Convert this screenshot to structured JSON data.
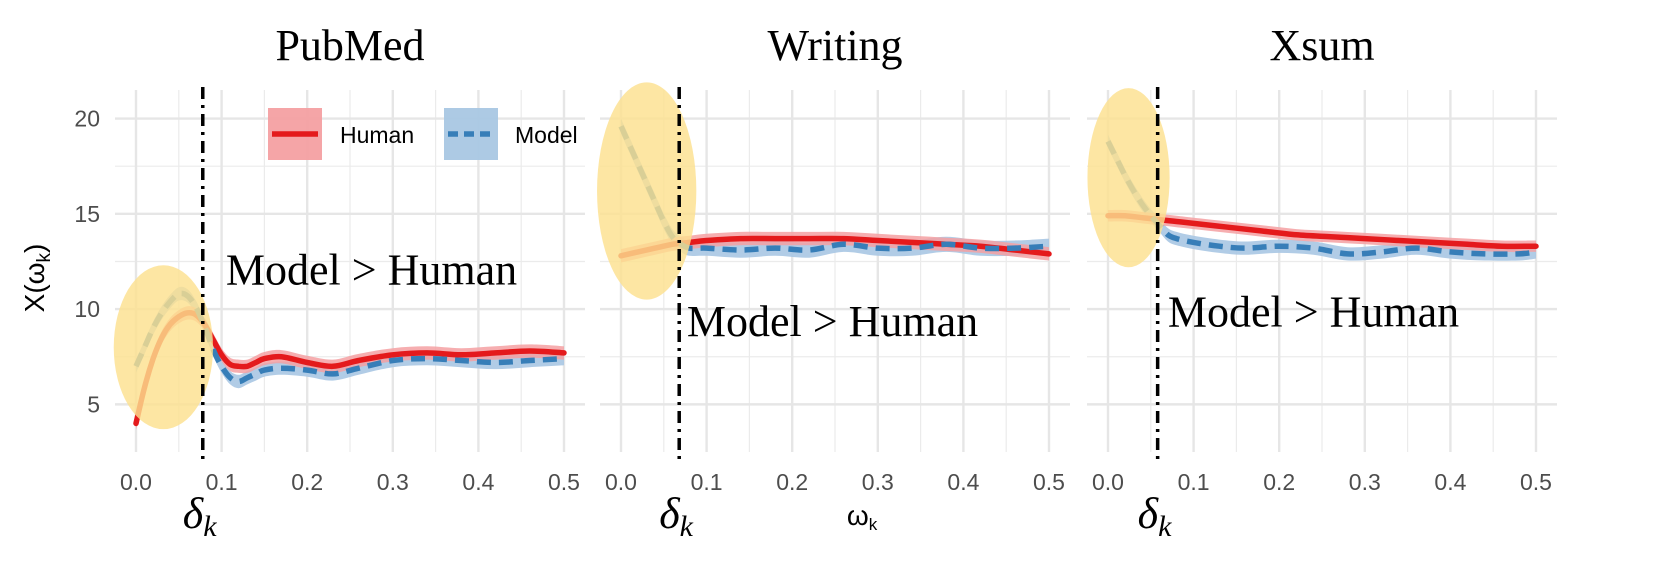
{
  "chart_data": {
    "type": "line",
    "ylabel": "X(ω",
    "ylabel_sub": "k",
    "ylabel_close": ")",
    "xlabel": "ω",
    "xlabel_sub": "k",
    "xlim": [
      0,
      0.5
    ],
    "ylim": [
      2.5,
      21.5
    ],
    "x_ticks": [
      0.0,
      0.1,
      0.2,
      0.3,
      0.4,
      0.5
    ],
    "x_tick_labels": [
      "0.0",
      "0.1",
      "0.2",
      "0.3",
      "0.4",
      "0.5"
    ],
    "y_ticks": [
      5,
      10,
      15,
      20
    ],
    "y_tick_labels": [
      "5",
      "10",
      "15",
      "20"
    ],
    "grid": true,
    "legend": {
      "position": "top-right of first panel",
      "entries": [
        {
          "label": "Human",
          "color": "#e41a1c",
          "style": "solid"
        },
        {
          "label": "Model",
          "color": "#377eb8",
          "style": "dashed"
        }
      ]
    },
    "colors": {
      "human": "#e41a1c",
      "human_band": "#f4a0a2",
      "model": "#377eb8",
      "model_band": "#a9c7e3",
      "highlight": "#fce08f",
      "threshold": "#000000"
    },
    "delta_symbol": "δ",
    "delta_sub": "k",
    "panels": [
      {
        "title": "PubMed",
        "annotation": "Model > Human",
        "annotation_pos": [
          0.105,
          11.3
        ],
        "delta_x": 0.078,
        "highlight": {
          "cx": 0.032,
          "cy": 8.0,
          "rx": 0.058,
          "ry_units": 4.3
        },
        "series": [
          {
            "name": "Human",
            "x": [
              0.0,
              0.01,
              0.02,
              0.03,
              0.04,
              0.05,
              0.06,
              0.07,
              0.08,
              0.09,
              0.1,
              0.11,
              0.12,
              0.13,
              0.14,
              0.15,
              0.17,
              0.2,
              0.23,
              0.26,
              0.3,
              0.34,
              0.38,
              0.42,
              0.46,
              0.5
            ],
            "y": [
              4.0,
              5.9,
              7.4,
              8.5,
              9.2,
              9.6,
              9.8,
              9.7,
              9.2,
              8.4,
              7.6,
              7.1,
              7.0,
              7.0,
              7.2,
              7.4,
              7.5,
              7.2,
              7.0,
              7.3,
              7.6,
              7.7,
              7.6,
              7.7,
              7.8,
              7.7
            ],
            "band": 0.35
          },
          {
            "name": "Model",
            "x": [
              0.0,
              0.01,
              0.02,
              0.03,
              0.04,
              0.05,
              0.06,
              0.07,
              0.08,
              0.09,
              0.1,
              0.11,
              0.12,
              0.13,
              0.14,
              0.15,
              0.17,
              0.2,
              0.23,
              0.26,
              0.3,
              0.34,
              0.38,
              0.42,
              0.46,
              0.5
            ],
            "y": [
              7.0,
              8.0,
              9.0,
              9.8,
              10.4,
              10.8,
              10.7,
              10.1,
              9.1,
              7.9,
              7.0,
              6.4,
              6.2,
              6.4,
              6.6,
              6.8,
              6.9,
              6.8,
              6.6,
              6.9,
              7.3,
              7.4,
              7.3,
              7.2,
              7.3,
              7.4
            ],
            "band": 0.35
          }
        ]
      },
      {
        "title": "Writing",
        "annotation": "Model > Human",
        "annotation_pos": [
          0.077,
          8.6
        ],
        "delta_x": 0.068,
        "highlight": {
          "cx": 0.03,
          "cy": 16.2,
          "rx": 0.058,
          "ry_units": 5.7
        },
        "series": [
          {
            "name": "Human",
            "x": [
              0.0,
              0.02,
              0.04,
              0.06,
              0.08,
              0.1,
              0.14,
              0.18,
              0.22,
              0.26,
              0.3,
              0.34,
              0.38,
              0.42,
              0.46,
              0.5
            ],
            "y": [
              12.8,
              13.0,
              13.2,
              13.4,
              13.5,
              13.6,
              13.7,
              13.7,
              13.7,
              13.7,
              13.6,
              13.5,
              13.4,
              13.3,
              13.1,
              12.9
            ],
            "band": 0.35
          },
          {
            "name": "Model",
            "x": [
              0.0,
              0.01,
              0.02,
              0.03,
              0.04,
              0.05,
              0.06,
              0.07,
              0.08,
              0.1,
              0.14,
              0.18,
              0.22,
              0.26,
              0.3,
              0.34,
              0.38,
              0.42,
              0.46,
              0.5
            ],
            "y": [
              19.6,
              18.6,
              17.6,
              16.6,
              15.6,
              14.6,
              13.8,
              13.4,
              13.2,
              13.2,
              13.1,
              13.2,
              13.1,
              13.4,
              13.2,
              13.2,
              13.4,
              13.2,
              13.2,
              13.3
            ],
            "band": 0.4
          }
        ]
      },
      {
        "title": "Xsum",
        "annotation": "Model > Human",
        "annotation_pos": [
          0.07,
          9.1
        ],
        "delta_x": 0.058,
        "highlight": {
          "cx": 0.024,
          "cy": 16.9,
          "rx": 0.048,
          "ry_units": 4.7
        },
        "series": [
          {
            "name": "Human",
            "x": [
              0.0,
              0.02,
              0.04,
              0.06,
              0.08,
              0.1,
              0.14,
              0.18,
              0.22,
              0.26,
              0.3,
              0.34,
              0.38,
              0.42,
              0.46,
              0.5
            ],
            "y": [
              14.9,
              14.9,
              14.8,
              14.7,
              14.6,
              14.5,
              14.3,
              14.1,
              13.9,
              13.8,
              13.7,
              13.6,
              13.5,
              13.4,
              13.3,
              13.3
            ],
            "band": 0.3
          },
          {
            "name": "Model",
            "x": [
              0.0,
              0.01,
              0.02,
              0.03,
              0.04,
              0.05,
              0.06,
              0.07,
              0.08,
              0.1,
              0.13,
              0.16,
              0.2,
              0.24,
              0.28,
              0.32,
              0.36,
              0.4,
              0.44,
              0.48,
              0.5
            ],
            "y": [
              18.8,
              17.9,
              17.0,
              16.2,
              15.5,
              14.9,
              14.4,
              13.9,
              13.7,
              13.5,
              13.3,
              13.2,
              13.3,
              13.2,
              12.9,
              13.0,
              13.2,
              13.0,
              12.9,
              12.9,
              13.0
            ],
            "band": 0.35
          }
        ]
      }
    ]
  }
}
